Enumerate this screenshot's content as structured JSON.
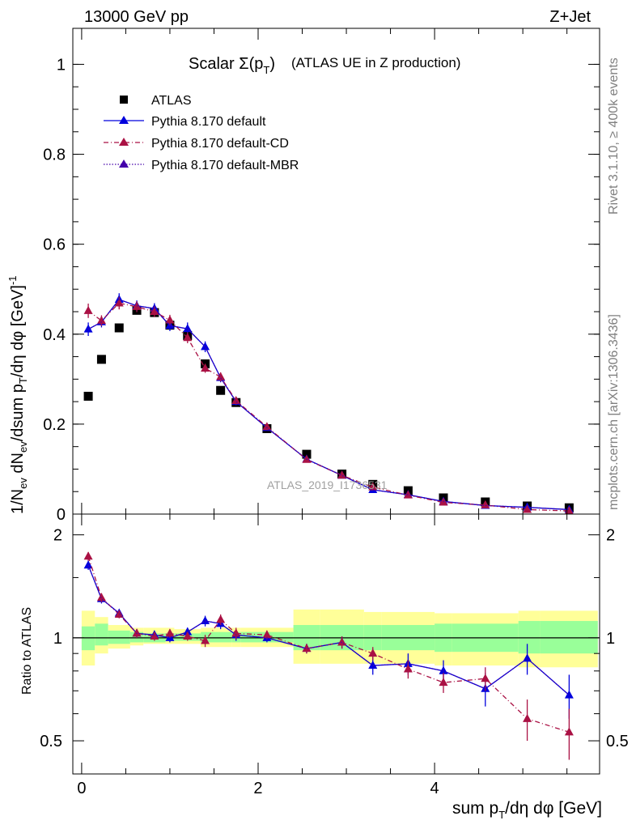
{
  "header": {
    "energy": "13000 GeV pp",
    "process": "Z+Jet"
  },
  "side_labels": {
    "rivet": "Rivet 3.1.10, ≥ 400k events",
    "mcplots": "mcplots.cern.ch [arXiv:1306.3436]"
  },
  "chart_data": [
    {
      "type": "scatter",
      "title": "Scalar Σ(p_T) (ATLAS UE in Z production)",
      "title_main": "Scalar Σ(p",
      "title_sub": "T",
      "title_close": ")",
      "title_rest": "(ATLAS UE in Z production)",
      "ylabel": "1/N_ev dN_ev/dsum p_T/dη dφ [GeV]^-1",
      "ylabel_parts": {
        "a": "1/N",
        "b": "ev",
        "c": " dN",
        "d": "ev",
        "e": "/dsum p",
        "f": "T",
        "g": "/dη dφ  [GeV]",
        "h": "-1"
      },
      "xlim": [
        -0.1,
        5.87
      ],
      "ylim": [
        0,
        1.08
      ],
      "y_ticks": [
        0,
        0.2,
        0.4,
        0.6,
        0.8,
        1
      ],
      "y_tick_labels": [
        "0",
        "0.2",
        "0.4",
        "0.6",
        "0.8",
        "1"
      ],
      "watermark": "ATLAS_2019_I1736531",
      "x": [
        0.075,
        0.225,
        0.425,
        0.625,
        0.825,
        1.0,
        1.2,
        1.4,
        1.575,
        1.75,
        2.1,
        2.55,
        2.95,
        3.3,
        3.7,
        4.1,
        4.575,
        5.05,
        5.525
      ],
      "series": [
        {
          "name": "ATLAS",
          "marker": "square",
          "color": "#000000",
          "values": [
            0.262,
            0.344,
            0.414,
            0.453,
            0.448,
            0.42,
            0.397,
            0.334,
            0.275,
            0.248,
            0.19,
            0.133,
            0.089,
            0.066,
            0.052,
            0.036,
            0.027,
            0.018,
            0.014
          ]
        },
        {
          "name": "Pythia 8.170 default",
          "marker": "triangle",
          "line": "solid",
          "color": "#0000dd",
          "values": [
            0.411,
            0.427,
            0.477,
            0.463,
            0.457,
            0.419,
            0.412,
            0.372,
            0.303,
            0.25,
            0.192,
            0.122,
            0.086,
            0.054,
            0.043,
            0.028,
            0.019,
            0.015,
            0.01
          ],
          "errors": [
            0.015,
            0.012,
            0.014,
            0.012,
            0.012,
            0.012,
            0.014,
            0.012,
            0.01,
            0.008,
            0.006,
            0.004,
            0.003,
            0.002,
            0.002,
            0.001,
            0.001,
            0.001,
            0.001
          ]
        },
        {
          "name": "Pythia 8.170 default-CD",
          "marker": "triangle",
          "line": "dashdot",
          "color": "#aa1144",
          "values": [
            0.452,
            0.43,
            0.469,
            0.461,
            0.45,
            0.431,
            0.392,
            0.324,
            0.305,
            0.252,
            0.194,
            0.121,
            0.086,
            0.06,
            0.042,
            0.026,
            0.02,
            0.01,
            0.007
          ],
          "errors": [
            0.016,
            0.012,
            0.014,
            0.012,
            0.012,
            0.012,
            0.012,
            0.01,
            0.01,
            0.008,
            0.006,
            0.004,
            0.003,
            0.002,
            0.002,
            0.001,
            0.001,
            0.001,
            0.001
          ]
        },
        {
          "name": "Pythia 8.170 default-MBR",
          "marker": "triangle",
          "line": "dotted",
          "color": "#4400aa",
          "values": [
            0.411,
            0.427,
            0.477,
            0.463,
            0.457,
            0.419,
            0.412,
            0.372,
            0.303,
            0.25,
            0.192,
            0.122,
            0.086,
            0.054,
            0.043,
            0.028,
            0.019,
            0.015,
            0.01
          ]
        }
      ]
    },
    {
      "type": "scatter",
      "ylabel": "Ratio to ATLAS",
      "xlabel": "sum p_T/dη dφ [GeV]",
      "xlabel_parts": {
        "a": "sum p",
        "b": "T",
        "c": "/dη dφ [GeV]"
      },
      "xlim": [
        -0.1,
        5.87
      ],
      "ylim": [
        0.4,
        2.3
      ],
      "log_y": true,
      "x_ticks": [
        0,
        2,
        4
      ],
      "x_tick_labels": [
        "0",
        "2",
        "4"
      ],
      "y_ticks": [
        0.5,
        1,
        2
      ],
      "y_tick_labels": [
        "0.5",
        "1",
        "2"
      ],
      "bin_edges": [
        0.0,
        0.15,
        0.3,
        0.55,
        0.7,
        0.95,
        1.05,
        1.35,
        1.45,
        1.7,
        1.8,
        2.4,
        2.7,
        3.2,
        3.4,
        4.0,
        4.2,
        4.95,
        5.2,
        5.85
      ],
      "band_inner": [
        [
          0.92,
          1.08
        ],
        [
          0.95,
          1.1
        ],
        [
          0.96,
          1.05
        ],
        [
          0.97,
          1.04
        ],
        [
          0.97,
          1.03
        ],
        [
          0.98,
          1.03
        ],
        [
          0.98,
          1.03
        ],
        [
          0.97,
          1.04
        ],
        [
          0.97,
          1.04
        ],
        [
          0.97,
          1.04
        ],
        [
          0.97,
          1.04
        ],
        [
          0.92,
          1.09
        ],
        [
          0.92,
          1.09
        ],
        [
          0.92,
          1.09
        ],
        [
          0.92,
          1.09
        ],
        [
          0.91,
          1.1
        ],
        [
          0.91,
          1.1
        ],
        [
          0.9,
          1.12
        ],
        [
          0.9,
          1.12
        ],
        [
          0.89,
          1.13
        ]
      ],
      "band_outer": [
        [
          0.83,
          1.2
        ],
        [
          0.9,
          1.15
        ],
        [
          0.93,
          1.09
        ],
        [
          0.95,
          1.07
        ],
        [
          0.96,
          1.07
        ],
        [
          0.96,
          1.07
        ],
        [
          0.96,
          1.06
        ],
        [
          0.94,
          1.07
        ],
        [
          0.94,
          1.07
        ],
        [
          0.94,
          1.07
        ],
        [
          0.94,
          1.07
        ],
        [
          0.84,
          1.21
        ],
        [
          0.84,
          1.21
        ],
        [
          0.84,
          1.19
        ],
        [
          0.84,
          1.19
        ],
        [
          0.83,
          1.18
        ],
        [
          0.83,
          1.18
        ],
        [
          0.82,
          1.2
        ],
        [
          0.82,
          1.2
        ],
        [
          0.8,
          1.24
        ]
      ],
      "band_colors": {
        "inner": "#99ff99",
        "outer": "#ffff99"
      },
      "x": [
        0.075,
        0.225,
        0.425,
        0.625,
        0.825,
        1.0,
        1.2,
        1.4,
        1.575,
        1.75,
        2.1,
        2.55,
        2.95,
        3.3,
        3.7,
        4.1,
        4.575,
        5.05,
        5.525
      ],
      "series": [
        {
          "name": "Pythia 8.170 default",
          "color": "#0000dd",
          "line": "solid",
          "values": [
            1.63,
            1.3,
            1.18,
            1.03,
            1.02,
            1.0,
            1.04,
            1.12,
            1.1,
            1.02,
            1.0,
            0.93,
            0.97,
            0.83,
            0.84,
            0.8,
            0.71,
            0.87,
            0.68
          ],
          "errors": [
            0.05,
            0.04,
            0.03,
            0.03,
            0.03,
            0.03,
            0.03,
            0.04,
            0.04,
            0.04,
            0.03,
            0.03,
            0.04,
            0.05,
            0.06,
            0.06,
            0.08,
            0.09,
            0.1
          ]
        },
        {
          "name": "Pythia 8.170 default-CD",
          "color": "#aa1144",
          "line": "dashdot",
          "values": [
            1.73,
            1.31,
            1.17,
            1.03,
            1.01,
            1.03,
            1.01,
            0.98,
            1.13,
            1.03,
            1.02,
            0.93,
            0.97,
            0.9,
            0.81,
            0.74,
            0.76,
            0.58,
            0.53
          ],
          "errors": [
            0.05,
            0.04,
            0.03,
            0.03,
            0.03,
            0.03,
            0.03,
            0.04,
            0.04,
            0.04,
            0.03,
            0.03,
            0.04,
            0.04,
            0.05,
            0.05,
            0.06,
            0.08,
            0.09
          ]
        },
        {
          "name": "Pythia 8.170 default-MBR",
          "color": "#4400aa",
          "line": "dotted",
          "values": [
            1.63,
            1.3,
            1.18,
            1.03,
            1.02,
            1.0,
            1.04,
            1.12,
            1.1,
            1.02,
            1.0,
            0.93,
            0.97,
            0.83,
            0.84,
            0.8,
            0.71,
            0.87,
            0.68
          ]
        }
      ]
    }
  ]
}
